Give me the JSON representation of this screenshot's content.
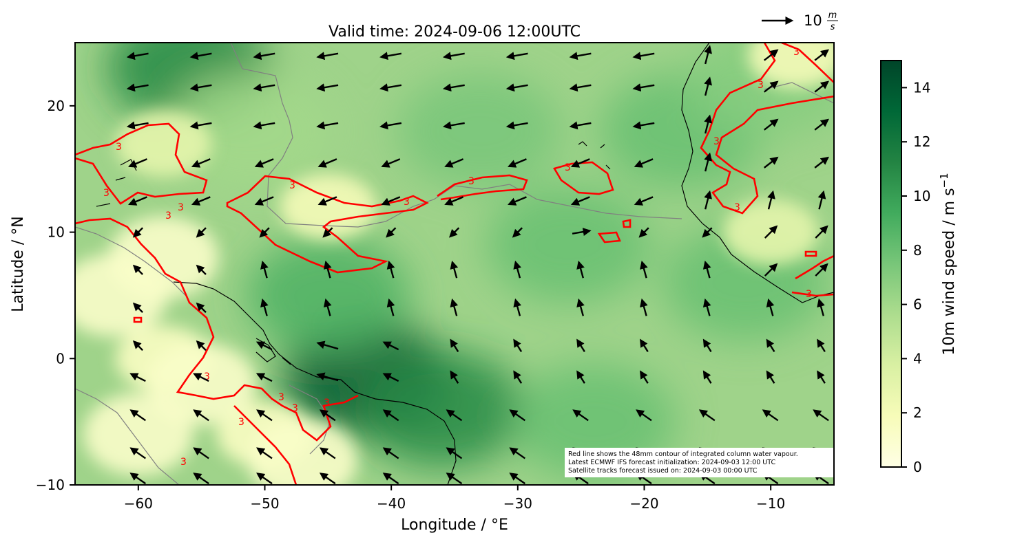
{
  "title": "Valid time: 2024-09-06 12:00UTC",
  "quiver_key": {
    "value": "10",
    "unit_num": "m",
    "unit_den": "s"
  },
  "xaxis": {
    "label": "Longitude / °E",
    "range": [
      -65,
      -5
    ],
    "ticks": [
      {
        "value": -60,
        "label": "−60"
      },
      {
        "value": -50,
        "label": "−50"
      },
      {
        "value": -40,
        "label": "−40"
      },
      {
        "value": -30,
        "label": "−30"
      },
      {
        "value": -20,
        "label": "−20"
      },
      {
        "value": -10,
        "label": "−10"
      }
    ]
  },
  "yaxis": {
    "label": "Latitude / °N",
    "range": [
      -10,
      25
    ],
    "ticks": [
      {
        "value": -10,
        "label": "−10"
      },
      {
        "value": 0,
        "label": "0"
      },
      {
        "value": 10,
        "label": "10"
      },
      {
        "value": 20,
        "label": "20"
      }
    ]
  },
  "colorbar": {
    "label": "10m wind speed / m s",
    "label_sup": "−1",
    "range": [
      0,
      15
    ],
    "ticks": [
      {
        "value": 0,
        "label": "0"
      },
      {
        "value": 2,
        "label": "2"
      },
      {
        "value": 4,
        "label": "4"
      },
      {
        "value": 6,
        "label": "6"
      },
      {
        "value": 8,
        "label": "8"
      },
      {
        "value": 10,
        "label": "10"
      },
      {
        "value": 12,
        "label": "12"
      },
      {
        "value": 14,
        "label": "14"
      }
    ],
    "colors": [
      "#ffffe5",
      "#f7fcb9",
      "#d9f0a3",
      "#addd8e",
      "#78c679",
      "#41ab5d",
      "#238443",
      "#006837",
      "#004529"
    ]
  },
  "contour": {
    "color": "#ff0000",
    "label": "3"
  },
  "coast_color": "#000000",
  "gray_contour_color": "#808080",
  "notes": [
    "Red line shows the 48mm contour of integrated column water vapour.",
    "Latest ECMWF IFS forecast initialization: 2024-09-03 12:00 UTC",
    "Satellite tracks forecast issued on: 2024-09-03 00:00 UTC"
  ],
  "chart_data": {
    "type": "heatmap",
    "title": "Valid time: 2024-09-06 12:00UTC",
    "xlabel": "Longitude / °E",
    "ylabel": "Latitude / °N",
    "xlim": [
      -65,
      -5
    ],
    "ylim": [
      -10,
      25
    ],
    "colorbar_label": "10m wind speed / m s⁻¹",
    "colorbar_range": [
      0,
      15
    ],
    "speed_centers": [
      {
        "lon": -42,
        "lat": -1.5,
        "speed": 14
      },
      {
        "lon": -56,
        "lat": 23,
        "speed": 11
      },
      {
        "lon": -36,
        "lat": -4,
        "speed": 11
      },
      {
        "lon": -26,
        "lat": 9,
        "speed": 8
      },
      {
        "lon": -33,
        "lat": 18,
        "speed": 7.5
      },
      {
        "lon": -17,
        "lat": 18,
        "speed": 8
      },
      {
        "lon": -12,
        "lat": 6,
        "speed": 8
      },
      {
        "lon": -24,
        "lat": -5,
        "speed": 8
      },
      {
        "lon": -45,
        "lat": 5,
        "speed": 9
      },
      {
        "lon": -51,
        "lat": 18,
        "speed": 6
      },
      {
        "lon": -10,
        "lat": 22,
        "speed": 7
      }
    ],
    "low_wind_regions": [
      {
        "lon": -58,
        "lat": 0,
        "speed": 1.5
      },
      {
        "lon": -50,
        "lat": -6,
        "speed": 1.5
      },
      {
        "lon": -45,
        "lat": 12,
        "speed": 2
      },
      {
        "lon": -58,
        "lat": 17,
        "speed": 3
      },
      {
        "lon": -10,
        "lat": 10,
        "speed": 3
      },
      {
        "lon": -8,
        "lat": 24,
        "speed": 2
      }
    ],
    "wind_vectors": {
      "lons": [
        -60,
        -55,
        -50,
        -45,
        -40,
        -35,
        -30,
        -25,
        -20,
        -15,
        -10,
        -6
      ],
      "lats": [
        24,
        21.5,
        18.5,
        15.5,
        12.5,
        10,
        7,
        4,
        1,
        -1.5,
        -4.5,
        -7.5,
        -9.5
      ],
      "units": "m/s",
      "key_speed": 10
    },
    "contour_level_label": "3"
  }
}
